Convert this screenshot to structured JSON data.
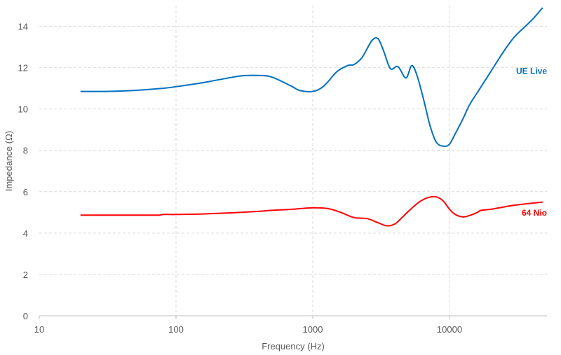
{
  "chart_data": {
    "type": "line",
    "title": "",
    "xlabel": "Frequency (Hz)",
    "ylabel": "Impedance (Ω)",
    "xscale": "log",
    "xlim": [
      10,
      50000
    ],
    "ylim": [
      0,
      15
    ],
    "x_ticks": [
      10,
      100,
      1000,
      10000
    ],
    "x_tick_labels": [
      "10",
      "100",
      "1000",
      "10000"
    ],
    "y_ticks": [
      0,
      2,
      4,
      6,
      8,
      10,
      12,
      14
    ],
    "y_tick_labels": [
      "0",
      "2",
      "4",
      "6",
      "8",
      "10",
      "12",
      "14"
    ],
    "grid": true,
    "legend": "inline labels at right end of each series",
    "series": [
      {
        "name": "UE Live",
        "color": "#0070c0",
        "x": [
          20,
          30,
          50,
          80,
          100,
          150,
          200,
          300,
          400,
          500,
          700,
          800,
          1000,
          1200,
          1500,
          1800,
          2000,
          2300,
          2700,
          3000,
          3300,
          3700,
          4200,
          4800,
          5300,
          5800,
          6500,
          7200,
          8000,
          9000,
          10000,
          11000,
          12500,
          14000,
          16000,
          20000,
          25000,
          30000,
          40000,
          48000
        ],
        "values": [
          10.85,
          10.85,
          10.9,
          11.0,
          11.08,
          11.25,
          11.4,
          11.6,
          11.62,
          11.55,
          11.1,
          10.9,
          10.85,
          11.1,
          11.8,
          12.1,
          12.15,
          12.5,
          13.3,
          13.4,
          12.8,
          11.95,
          12.05,
          11.5,
          12.1,
          11.6,
          10.4,
          9.2,
          8.4,
          8.2,
          8.3,
          8.8,
          9.5,
          10.2,
          10.8,
          11.8,
          12.8,
          13.5,
          14.3,
          14.9
        ]
      },
      {
        "name": "64 Nio",
        "color": "#ff0000",
        "x": [
          20,
          30,
          50,
          75,
          80,
          100,
          150,
          200,
          300,
          400,
          500,
          700,
          1000,
          1300,
          1600,
          2000,
          2500,
          3000,
          3500,
          4000,
          4500,
          5000,
          6000,
          7000,
          8000,
          9000,
          10000,
          11000,
          12500,
          14000,
          16000,
          17000,
          20000,
          30000,
          48000
        ],
        "values": [
          4.87,
          4.87,
          4.87,
          4.87,
          4.9,
          4.9,
          4.92,
          4.95,
          5.0,
          5.05,
          5.1,
          5.15,
          5.22,
          5.18,
          5.0,
          4.75,
          4.7,
          4.5,
          4.35,
          4.45,
          4.75,
          5.05,
          5.5,
          5.72,
          5.75,
          5.55,
          5.15,
          4.9,
          4.78,
          4.85,
          5.0,
          5.1,
          5.15,
          5.35,
          5.5
        ]
      }
    ]
  }
}
